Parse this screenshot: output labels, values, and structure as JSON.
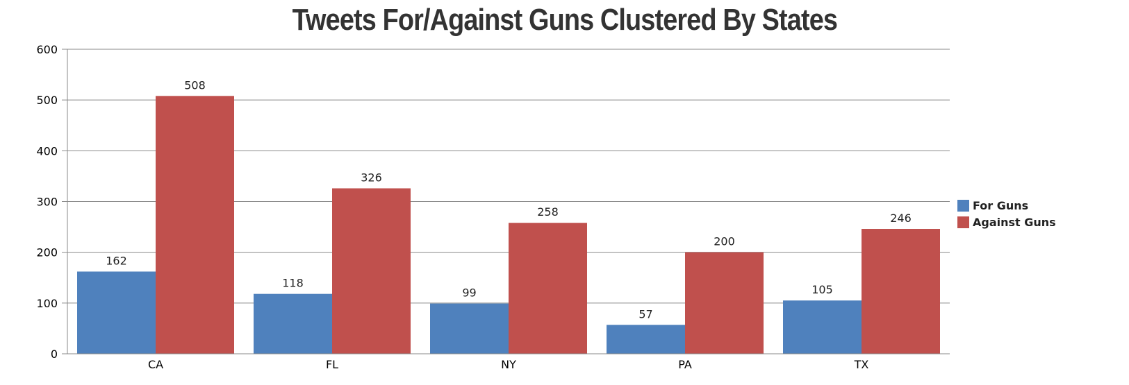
{
  "chart_data": {
    "type": "bar",
    "title": "Tweets For/Against Guns Clustered By States",
    "categories": [
      "CA",
      "FL",
      "NY",
      "PA",
      "TX"
    ],
    "series": [
      {
        "name": "For Guns",
        "color": "#4f81bd",
        "values": [
          162,
          118,
          99,
          57,
          105
        ]
      },
      {
        "name": "Against Guns",
        "color": "#c0504d",
        "values": [
          508,
          326,
          258,
          200,
          246
        ]
      }
    ],
    "ylim": [
      0,
      600
    ],
    "yticks": [
      0,
      100,
      200,
      300,
      400,
      500,
      600
    ],
    "grid": true,
    "legend_position": "right",
    "data_labels": true
  }
}
